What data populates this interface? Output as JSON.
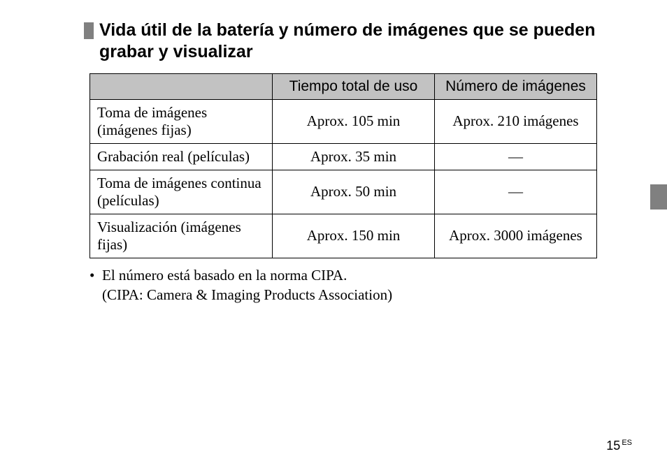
{
  "heading": "Vida útil de la batería y número de imágenes que se pueden grabar y visualizar",
  "table": {
    "columns": {
      "blank": "",
      "time": "Tiempo total de uso",
      "count": "Número de imágenes"
    },
    "rows": [
      {
        "label": "Toma de imágenes (imágenes fijas)",
        "time": "Aprox. 105 min",
        "count": "Aprox. 210 imágenes"
      },
      {
        "label": "Grabación real (películas)",
        "time": "Aprox. 35 min",
        "count": "—"
      },
      {
        "label": "Toma de imágenes continua (películas)",
        "time": "Aprox. 50 min",
        "count": "—"
      },
      {
        "label": "Visualización (imágenes fijas)",
        "time": "Aprox. 150 min",
        "count": "Aprox. 3000 imágenes"
      }
    ],
    "header_bg": "#c2c2c2",
    "border_color": "#000000",
    "col_widths_pct": [
      36,
      32,
      32
    ],
    "font_size_pt": 16
  },
  "notes": {
    "bullet": "•",
    "line1": "El número está basado en la norma CIPA.",
    "line2": "(CIPA: Camera & Imaging Products Association)"
  },
  "page_number": "15",
  "page_lang": "ES",
  "colors": {
    "marker": "#808080",
    "side_tab": "#808080",
    "background": "#ffffff",
    "text": "#000000"
  }
}
